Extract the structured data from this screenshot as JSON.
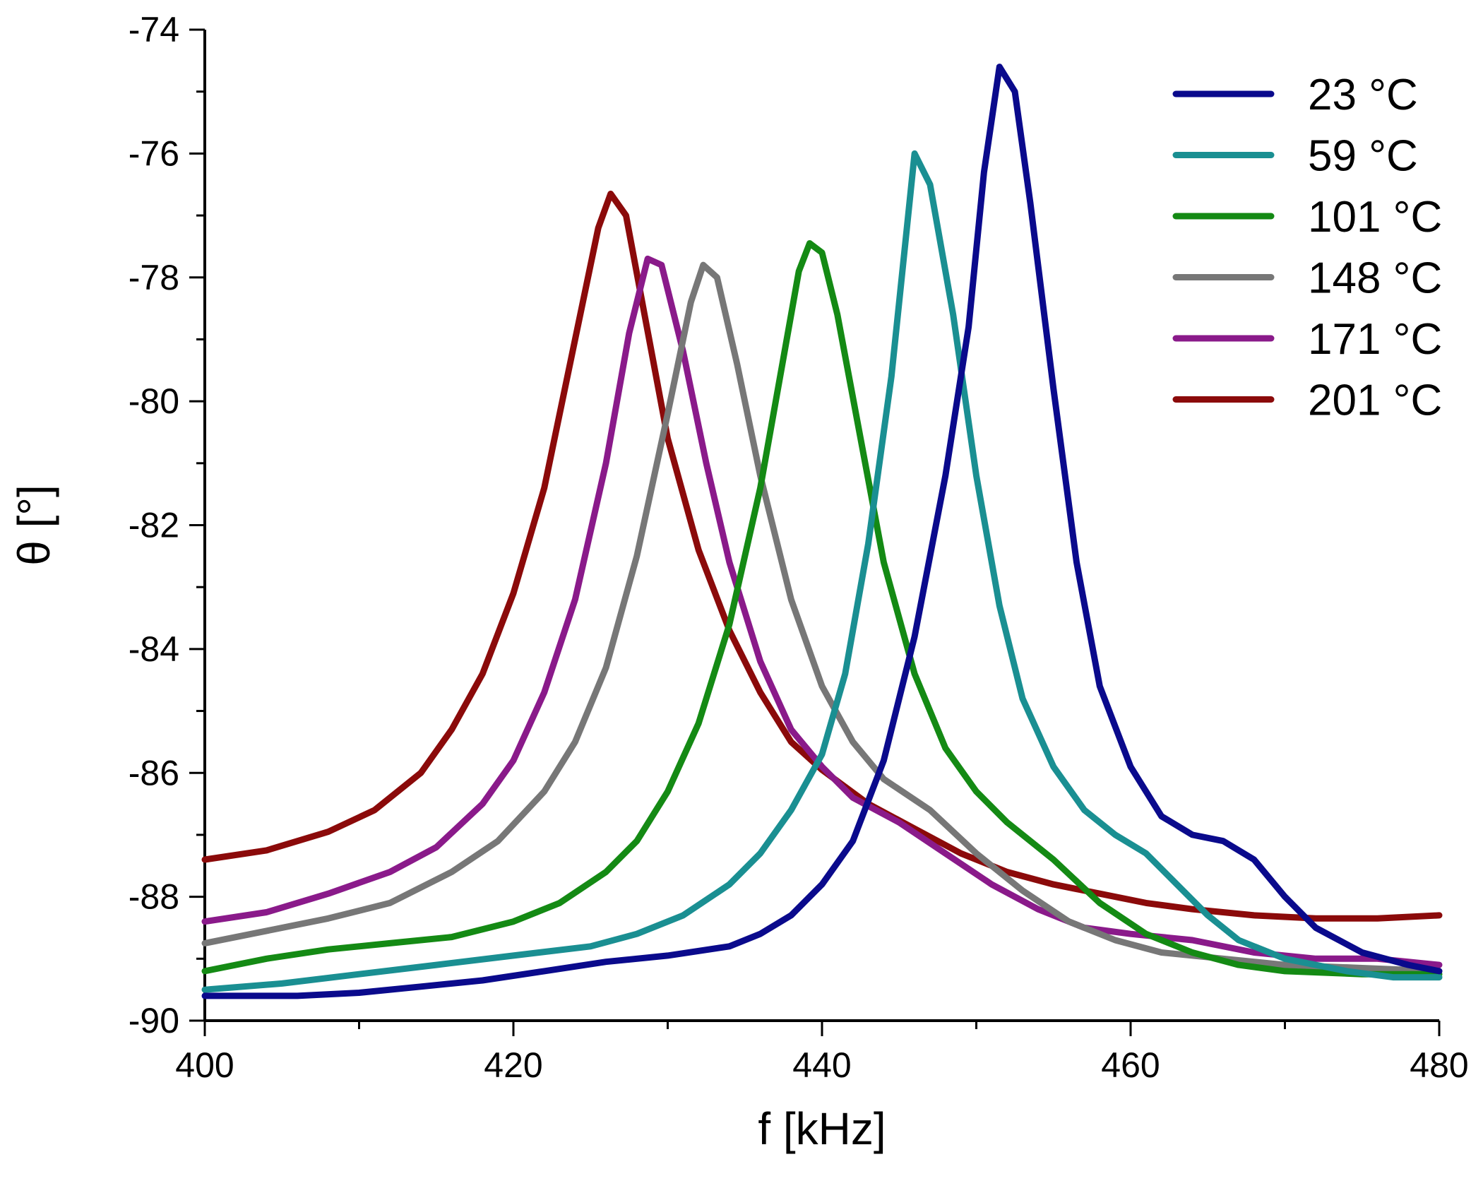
{
  "chart_data": {
    "type": "line",
    "title": "",
    "xlabel": "f [kHz]",
    "ylabel": "θ [°]",
    "xlim": [
      400,
      480
    ],
    "ylim": [
      -90,
      -74
    ],
    "x_ticks": [
      400,
      420,
      440,
      460,
      480
    ],
    "x_tick_labels": [
      "400",
      "420",
      "440",
      "460",
      "480"
    ],
    "y_ticks": [
      -90,
      -88,
      -86,
      -84,
      -82,
      -80,
      -78,
      -76,
      -74
    ],
    "y_tick_labels": [
      "-90",
      "-88",
      "-86",
      "-84",
      "-82",
      "-80",
      "-78",
      "-76",
      "-74"
    ],
    "grid": false,
    "legend_position": "top-right",
    "series": [
      {
        "name": "23 °C",
        "color": "#0a0a8c",
        "points": [
          [
            400,
            -89.6
          ],
          [
            406,
            -89.6
          ],
          [
            410,
            -89.55
          ],
          [
            414,
            -89.45
          ],
          [
            418,
            -89.35
          ],
          [
            422,
            -89.2
          ],
          [
            426,
            -89.05
          ],
          [
            430,
            -88.95
          ],
          [
            434,
            -88.8
          ],
          [
            436,
            -88.6
          ],
          [
            438,
            -88.3
          ],
          [
            440,
            -87.8
          ],
          [
            442,
            -87.1
          ],
          [
            444,
            -85.8
          ],
          [
            446,
            -83.8
          ],
          [
            448,
            -81.2
          ],
          [
            449.5,
            -78.8
          ],
          [
            450.5,
            -76.3
          ],
          [
            451.5,
            -74.6
          ],
          [
            452.5,
            -75.0
          ],
          [
            453.5,
            -76.8
          ],
          [
            455,
            -79.8
          ],
          [
            456.5,
            -82.6
          ],
          [
            458,
            -84.6
          ],
          [
            460,
            -85.9
          ],
          [
            462,
            -86.7
          ],
          [
            464,
            -87.0
          ],
          [
            466,
            -87.1
          ],
          [
            468,
            -87.4
          ],
          [
            470,
            -88.0
          ],
          [
            472,
            -88.5
          ],
          [
            475,
            -88.9
          ],
          [
            478,
            -89.1
          ],
          [
            480,
            -89.2
          ]
        ]
      },
      {
        "name": "59 °C",
        "color": "#1a8f92",
        "points": [
          [
            400,
            -89.5
          ],
          [
            405,
            -89.4
          ],
          [
            410,
            -89.25
          ],
          [
            415,
            -89.1
          ],
          [
            420,
            -88.95
          ],
          [
            425,
            -88.8
          ],
          [
            428,
            -88.6
          ],
          [
            431,
            -88.3
          ],
          [
            434,
            -87.8
          ],
          [
            436,
            -87.3
          ],
          [
            438,
            -86.6
          ],
          [
            440,
            -85.7
          ],
          [
            441.5,
            -84.4
          ],
          [
            443,
            -82.3
          ],
          [
            444.5,
            -79.6
          ],
          [
            445.5,
            -77.2
          ],
          [
            446,
            -76.0
          ],
          [
            447,
            -76.5
          ],
          [
            448.5,
            -78.6
          ],
          [
            450,
            -81.2
          ],
          [
            451.5,
            -83.3
          ],
          [
            453,
            -84.8
          ],
          [
            455,
            -85.9
          ],
          [
            457,
            -86.6
          ],
          [
            459,
            -87.0
          ],
          [
            461,
            -87.3
          ],
          [
            463,
            -87.8
          ],
          [
            465,
            -88.3
          ],
          [
            467,
            -88.7
          ],
          [
            470,
            -89.0
          ],
          [
            474,
            -89.2
          ],
          [
            477,
            -89.3
          ],
          [
            480,
            -89.3
          ]
        ]
      },
      {
        "name": "101 °C",
        "color": "#148a14",
        "points": [
          [
            400,
            -89.2
          ],
          [
            404,
            -89.0
          ],
          [
            408,
            -88.85
          ],
          [
            412,
            -88.75
          ],
          [
            416,
            -88.65
          ],
          [
            420,
            -88.4
          ],
          [
            423,
            -88.1
          ],
          [
            426,
            -87.6
          ],
          [
            428,
            -87.1
          ],
          [
            430,
            -86.3
          ],
          [
            432,
            -85.2
          ],
          [
            434,
            -83.6
          ],
          [
            436,
            -81.4
          ],
          [
            437.5,
            -79.3
          ],
          [
            438.5,
            -77.9
          ],
          [
            439.2,
            -77.45
          ],
          [
            440,
            -77.6
          ],
          [
            441,
            -78.6
          ],
          [
            442.5,
            -80.6
          ],
          [
            444,
            -82.6
          ],
          [
            446,
            -84.4
          ],
          [
            448,
            -85.6
          ],
          [
            450,
            -86.3
          ],
          [
            452,
            -86.8
          ],
          [
            455,
            -87.4
          ],
          [
            458,
            -88.1
          ],
          [
            461,
            -88.6
          ],
          [
            464,
            -88.9
          ],
          [
            467,
            -89.1
          ],
          [
            470,
            -89.2
          ],
          [
            475,
            -89.25
          ],
          [
            480,
            -89.25
          ]
        ]
      },
      {
        "name": "148 °C",
        "color": "#777777",
        "points": [
          [
            400,
            -88.75
          ],
          [
            404,
            -88.55
          ],
          [
            408,
            -88.35
          ],
          [
            412,
            -88.1
          ],
          [
            416,
            -87.6
          ],
          [
            419,
            -87.1
          ],
          [
            422,
            -86.3
          ],
          [
            424,
            -85.5
          ],
          [
            426,
            -84.3
          ],
          [
            428,
            -82.5
          ],
          [
            430,
            -80.2
          ],
          [
            431.5,
            -78.4
          ],
          [
            432.3,
            -77.8
          ],
          [
            433.2,
            -78.0
          ],
          [
            434.5,
            -79.4
          ],
          [
            436,
            -81.2
          ],
          [
            438,
            -83.2
          ],
          [
            440,
            -84.6
          ],
          [
            442,
            -85.5
          ],
          [
            444,
            -86.1
          ],
          [
            447,
            -86.6
          ],
          [
            450,
            -87.3
          ],
          [
            453,
            -87.9
          ],
          [
            456,
            -88.4
          ],
          [
            459,
            -88.7
          ],
          [
            462,
            -88.9
          ],
          [
            466,
            -89.0
          ],
          [
            470,
            -89.1
          ],
          [
            475,
            -89.15
          ],
          [
            480,
            -89.2
          ]
        ]
      },
      {
        "name": "171 °C",
        "color": "#8a1a8a",
        "points": [
          [
            400,
            -88.4
          ],
          [
            404,
            -88.25
          ],
          [
            408,
            -87.95
          ],
          [
            412,
            -87.6
          ],
          [
            415,
            -87.2
          ],
          [
            418,
            -86.5
          ],
          [
            420,
            -85.8
          ],
          [
            422,
            -84.7
          ],
          [
            424,
            -83.2
          ],
          [
            426,
            -81.0
          ],
          [
            427.5,
            -78.9
          ],
          [
            428.7,
            -77.7
          ],
          [
            429.6,
            -77.8
          ],
          [
            431,
            -79.2
          ],
          [
            432.5,
            -81.0
          ],
          [
            434,
            -82.6
          ],
          [
            436,
            -84.2
          ],
          [
            438,
            -85.3
          ],
          [
            440,
            -85.9
          ],
          [
            442,
            -86.4
          ],
          [
            445,
            -86.8
          ],
          [
            448,
            -87.3
          ],
          [
            451,
            -87.8
          ],
          [
            454,
            -88.2
          ],
          [
            457,
            -88.5
          ],
          [
            460,
            -88.6
          ],
          [
            464,
            -88.7
          ],
          [
            468,
            -88.9
          ],
          [
            472,
            -89.0
          ],
          [
            476,
            -89.0
          ],
          [
            480,
            -89.1
          ]
        ]
      },
      {
        "name": "201 °C",
        "color": "#8b0a0a",
        "points": [
          [
            400,
            -87.4
          ],
          [
            404,
            -87.25
          ],
          [
            408,
            -86.95
          ],
          [
            411,
            -86.6
          ],
          [
            414,
            -86.0
          ],
          [
            416,
            -85.3
          ],
          [
            418,
            -84.4
          ],
          [
            420,
            -83.1
          ],
          [
            422,
            -81.4
          ],
          [
            424,
            -79.0
          ],
          [
            425.5,
            -77.2
          ],
          [
            426.3,
            -76.65
          ],
          [
            427.3,
            -77.0
          ],
          [
            428.5,
            -78.6
          ],
          [
            430,
            -80.6
          ],
          [
            432,
            -82.4
          ],
          [
            434,
            -83.7
          ],
          [
            436,
            -84.7
          ],
          [
            438,
            -85.5
          ],
          [
            440,
            -85.95
          ],
          [
            443,
            -86.5
          ],
          [
            446,
            -86.9
          ],
          [
            449,
            -87.3
          ],
          [
            452,
            -87.6
          ],
          [
            455,
            -87.8
          ],
          [
            458,
            -87.95
          ],
          [
            461,
            -88.1
          ],
          [
            464,
            -88.2
          ],
          [
            468,
            -88.3
          ],
          [
            472,
            -88.35
          ],
          [
            476,
            -88.35
          ],
          [
            480,
            -88.3
          ]
        ]
      }
    ]
  }
}
